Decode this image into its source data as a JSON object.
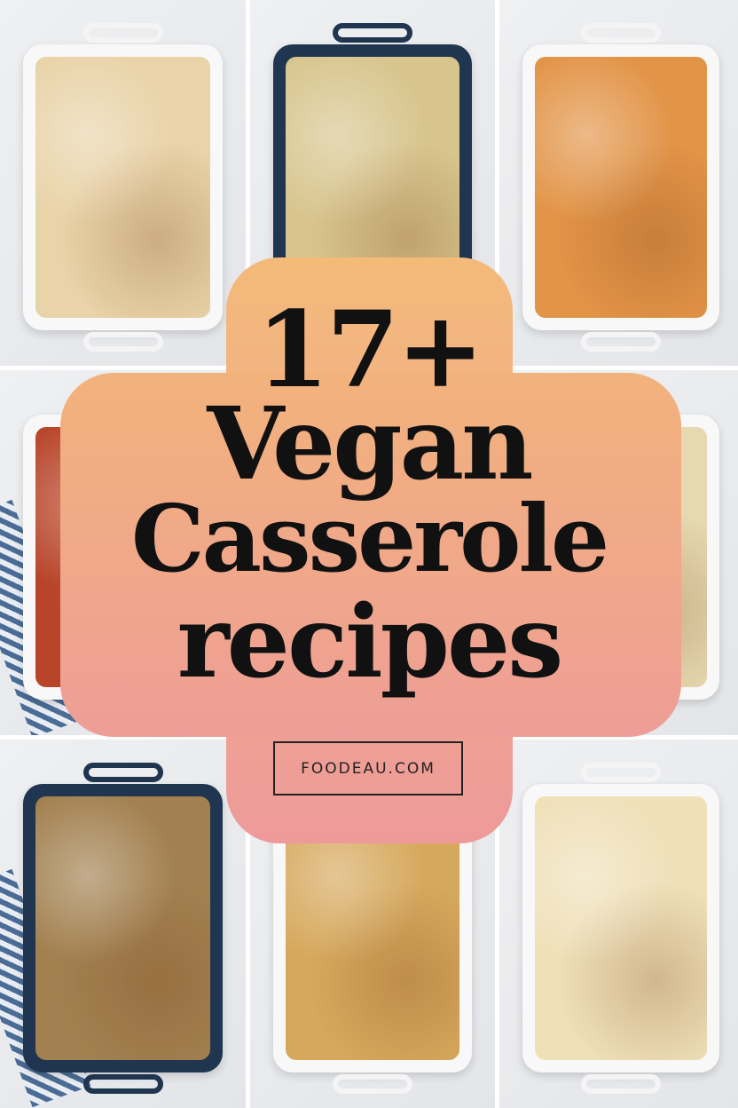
{
  "title": {
    "line1": "17+",
    "line2": "Vegan",
    "line3": "Casserole",
    "line4": "recipes"
  },
  "site": "FOODEAU.COM",
  "colors": {
    "badge_top": "#f3ba7a",
    "badge_bottom": "#ee9a9a",
    "text": "#111111"
  },
  "tiles": [
    {
      "dish": "white",
      "food": "#e9d3a8"
    },
    {
      "dish": "navy",
      "food": "#d8c58e"
    },
    {
      "dish": "white",
      "food": "#e29447"
    },
    {
      "dish": "white",
      "food": "#b8452a"
    },
    {
      "dish": "white",
      "food": "#e8d6a8"
    },
    {
      "dish": "white",
      "food": "#e6d8b0"
    },
    {
      "dish": "navy",
      "food": "#a2804f"
    },
    {
      "dish": "white",
      "food": "#d6a85c"
    },
    {
      "dish": "white",
      "food": "#efe0b8"
    }
  ]
}
